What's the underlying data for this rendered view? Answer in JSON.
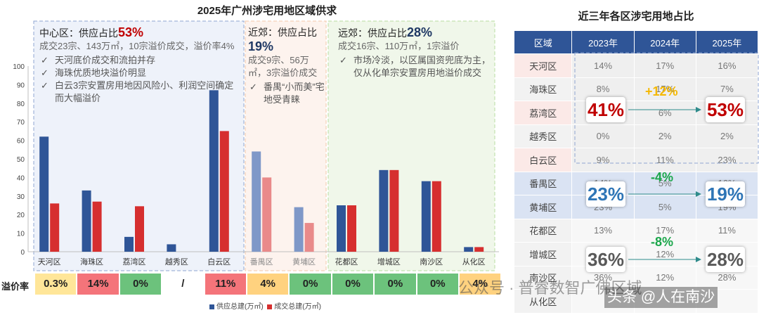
{
  "left_title": "2025年广州涉宅用地区域供求",
  "right_title": "近三年各区涉宅用地占比",
  "chart_data": {
    "type": "bar",
    "categories": [
      "天河区",
      "海珠区",
      "荔湾区",
      "越秀区",
      "白云区",
      "番禺区",
      "黄埔区",
      "花都区",
      "增城区",
      "南沙区",
      "从化区"
    ],
    "series": [
      {
        "name": "供应总建(万㎡)",
        "values": [
          62,
          33,
          8,
          4,
          87,
          54,
          24,
          25,
          44,
          38,
          2.5
        ]
      },
      {
        "name": "成交总建(万㎡)",
        "values": [
          26,
          27,
          24.5,
          0,
          65,
          40,
          15.5,
          25,
          44,
          38,
          2.5
        ]
      }
    ],
    "yticks": [
      "0",
      "10",
      "20",
      "30",
      "40",
      "50",
      "60",
      "70",
      "80",
      "90",
      "100"
    ],
    "ylim": [
      0,
      100
    ],
    "legend_position": "bottom",
    "series_colors": [
      "#2f5597",
      "#d62f2f"
    ],
    "faded_colors": [
      "#7f98c8",
      "#e98a8a"
    ]
  },
  "annotations": {
    "central": {
      "head": "中心区：供应占比",
      "pct": "53%",
      "line": "成交23宗、143万㎡，10宗溢价成交，溢价率4%",
      "items": [
        "天河底价成交和流拍并存",
        "海珠优质地块溢价明显",
        "白云3宗安置房用地因风险小、利润空间确定而大幅溢价"
      ]
    },
    "suburb": {
      "head": "近郊：供应占比",
      "pct": "19%",
      "line": "成交9宗、56万㎡，3宗溢价成交",
      "items": [
        "番禺“小而美”宅地受青睐"
      ]
    },
    "outer": {
      "head": "远郊：供应占比",
      "pct": "28%",
      "line": "成交16宗、110万㎡，1宗溢价",
      "items": [
        "市场冷淡，以区属国资兜底为主，仅从化单宗安置房用地溢价成交"
      ]
    }
  },
  "check_mark": "✓",
  "premium": {
    "label": "溢价率",
    "values": [
      "0.3%",
      "14%",
      "0%",
      "/",
      "11%",
      "4%",
      "0%",
      "0%",
      "0%",
      "0%",
      "4%"
    ],
    "colors": [
      "#ffe699",
      "#f4747a",
      "#6cc27c",
      "#ffffff",
      "#f4747a",
      "#ffd27f",
      "#6cc27c",
      "#6cc27c",
      "#6cc27c",
      "#6cc27c",
      "#ffd27f"
    ]
  },
  "table": {
    "headers": [
      "区域",
      "2023年",
      "2024年",
      "2025年"
    ],
    "rows": [
      [
        "天河区",
        "14%",
        "17%",
        "16%"
      ],
      [
        "海珠区",
        "8%",
        "17%",
        "7%"
      ],
      [
        "荔湾区",
        "41%",
        "6%",
        "53%"
      ],
      [
        "越秀区",
        "0%",
        "2%",
        "2%"
      ],
      [
        "白云区",
        "9%",
        "11%",
        "23%"
      ],
      [
        "番禺区",
        "14%",
        "5%",
        "16%"
      ],
      [
        "黄埔区",
        "23%",
        "5%",
        "19%"
      ],
      [
        "花都区",
        "13%",
        "17%",
        "11%"
      ],
      [
        "增城区",
        "8%",
        "12%",
        "7%"
      ],
      [
        "南沙区",
        "36%",
        "12%",
        "28%"
      ],
      [
        "从化区",
        "",
        "",
        ""
      ]
    ],
    "row_colors": [
      "#fbe9e7",
      "#f2f2f2",
      "#fbe9e7",
      "#f2f2f2",
      "#fbe9e7",
      "#dae3f3",
      "#dae3f3",
      "#f2f2f2",
      "#f2f2f2",
      "#f2f2f2",
      "#f2f2f2"
    ]
  },
  "highlights": [
    {
      "from": "41%",
      "to": "53%",
      "change": "+12%",
      "from_color": "#c00000",
      "change_color": "#f5b800"
    },
    {
      "from": "23%",
      "to": "19%",
      "change": "-4%",
      "from_color": "#2e75b6",
      "change_color": "#1aa64a"
    },
    {
      "from": "36%",
      "to": "28%",
      "change": "-8%",
      "from_color": "#595959",
      "change_color": "#1aa64a"
    }
  ],
  "watermark": {
    "wechat": "公众号 · 普睿数智广佛区域",
    "toutiao": "头条 @人在南沙"
  }
}
